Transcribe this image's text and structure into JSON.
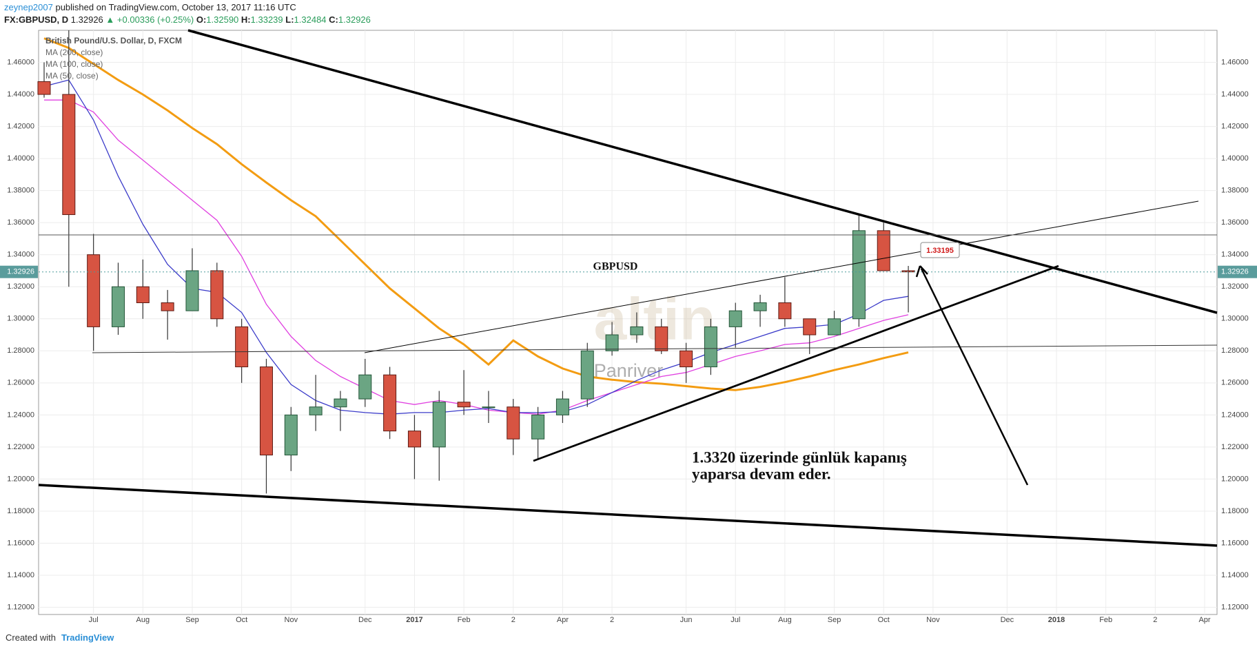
{
  "header": {
    "author": "zeynep2007",
    "published": "published on TradingView.com, October 13, 2017 11:16 UTC",
    "symbol": "FX:GBPUSD, D",
    "price": "1.32926",
    "change": "▲ +0.00336 (+0.25%)",
    "open_label": "O:",
    "open": "1.32590",
    "high_label": "H:",
    "high": "1.33239",
    "low_label": "L:",
    "low": "1.32484",
    "close_label": "C:",
    "close": "1.32926"
  },
  "chart_data": {
    "type": "candlestick",
    "instrument": "British Pound/U.S. Dollar, D, FXCM",
    "categories": [
      null,
      null,
      "Jul",
      null,
      "Aug",
      null,
      "Sep",
      null,
      "Oct",
      null,
      "Nov",
      null,
      null,
      "Dec",
      null,
      "2017",
      null,
      "Feb",
      null,
      "2",
      null,
      "Apr",
      null,
      "2",
      null,
      null,
      "Jun",
      null,
      "Jul",
      null,
      "Aug",
      null,
      "Sep",
      null,
      "Oct",
      null,
      "Nov",
      null,
      null,
      "Dec",
      null,
      "2018",
      null,
      "Feb",
      null,
      "2",
      null,
      "Apr"
    ],
    "up_color": "#6ba583",
    "down_color": "#d75442",
    "open": [
      1.448,
      1.44,
      1.34,
      1.295,
      1.32,
      1.31,
      1.305,
      1.33,
      1.295,
      1.27,
      1.215,
      1.24,
      1.245,
      1.25,
      1.265,
      1.23,
      1.22,
      1.248,
      1.245,
      1.245,
      1.225,
      1.24,
      1.25,
      1.28,
      1.29,
      1.295,
      1.28,
      1.27,
      1.295,
      1.305,
      1.31,
      1.3,
      1.29,
      1.3,
      1.355,
      1.33,
      null,
      null,
      null,
      null,
      null,
      null,
      null,
      null,
      null,
      null,
      null,
      null
    ],
    "high": [
      1.46,
      1.48,
      1.353,
      1.335,
      1.337,
      1.318,
      1.344,
      1.335,
      1.3,
      1.275,
      1.245,
      1.265,
      1.255,
      1.275,
      1.27,
      1.24,
      1.255,
      1.268,
      1.255,
      1.25,
      1.245,
      1.255,
      1.285,
      1.298,
      1.304,
      1.3,
      1.285,
      1.3,
      1.31,
      1.315,
      1.326,
      1.3,
      1.305,
      1.365,
      1.36,
      1.333,
      null,
      null,
      null,
      null,
      null,
      null,
      null,
      null,
      null,
      null,
      null,
      null
    ],
    "low": [
      1.438,
      1.32,
      1.28,
      1.29,
      1.3,
      1.287,
      1.305,
      1.295,
      1.26,
      1.191,
      1.205,
      1.23,
      1.23,
      1.245,
      1.225,
      1.2,
      1.199,
      1.24,
      1.235,
      1.215,
      1.212,
      1.235,
      1.245,
      1.277,
      1.285,
      1.278,
      1.26,
      1.265,
      1.282,
      1.295,
      1.295,
      1.278,
      1.29,
      1.295,
      1.33,
      1.304,
      null,
      null,
      null,
      null,
      null,
      null,
      null,
      null,
      null,
      null,
      null,
      null
    ],
    "close": [
      1.44,
      1.365,
      1.295,
      1.32,
      1.31,
      1.305,
      1.33,
      1.3,
      1.27,
      1.215,
      1.24,
      1.245,
      1.25,
      1.265,
      1.23,
      1.22,
      1.248,
      1.245,
      1.245,
      1.225,
      1.24,
      1.25,
      1.28,
      1.29,
      1.295,
      1.28,
      1.27,
      1.295,
      1.305,
      1.31,
      1.3,
      1.29,
      1.3,
      1.355,
      1.33,
      1.32926,
      null,
      null,
      null,
      null,
      null,
      null,
      null,
      null,
      null,
      null,
      null,
      null
    ],
    "series": [
      {
        "name": "MA (200, close)",
        "color": "#f39c12",
        "width": 3,
        "values": [
          1.475,
          1.469,
          1.459,
          1.449,
          1.44,
          1.43,
          1.419,
          1.409,
          1.3965,
          1.385,
          1.374,
          1.364,
          1.349,
          1.334,
          1.319,
          1.3065,
          1.294,
          1.284,
          1.2715,
          1.2865,
          1.2765,
          1.269,
          1.264,
          1.262,
          1.2605,
          1.2595,
          1.258,
          1.2565,
          1.2555,
          1.2575,
          1.2605,
          1.264,
          1.268,
          1.2715,
          1.2755,
          1.279,
          null,
          null,
          null,
          null,
          null,
          null,
          null,
          null,
          null,
          null,
          null,
          null
        ]
      },
      {
        "name": "MA (100, close)",
        "color": "#e040e0",
        "width": 1.3,
        "values": [
          1.4365,
          1.4365,
          1.429,
          1.4115,
          1.399,
          1.3865,
          1.374,
          1.3615,
          1.339,
          1.309,
          1.289,
          1.274,
          1.264,
          1.2565,
          1.249,
          1.2465,
          1.249,
          1.2465,
          1.243,
          1.2415,
          1.2405,
          1.243,
          1.249,
          1.254,
          1.259,
          1.264,
          1.2665,
          1.2715,
          1.2765,
          1.28,
          1.284,
          1.285,
          1.289,
          1.294,
          1.299,
          1.3025,
          null,
          null,
          null,
          null,
          null,
          null,
          null,
          null,
          null,
          null,
          null,
          null
        ]
      },
      {
        "name": "MA (50, close)",
        "color": "#3b3bc9",
        "width": 1.3,
        "values": [
          1.445,
          1.449,
          1.424,
          1.389,
          1.359,
          1.334,
          1.319,
          1.3165,
          1.304,
          1.279,
          1.259,
          1.249,
          1.243,
          1.2415,
          1.2405,
          1.2415,
          1.2415,
          1.243,
          1.244,
          1.2415,
          1.2415,
          1.242,
          1.2465,
          1.254,
          1.2615,
          1.268,
          1.273,
          1.279,
          1.284,
          1.289,
          1.294,
          1.295,
          1.2965,
          1.303,
          1.3115,
          1.314,
          null,
          null,
          null,
          null,
          null,
          null,
          null,
          null,
          null,
          null,
          null,
          null
        ]
      }
    ],
    "last_price": 1.32926,
    "ylim": [
      1.1155,
      1.48
    ],
    "yticks": [
      {
        "value": 1.12,
        "label": "1.12000"
      },
      {
        "value": 1.14,
        "label": "1.14000"
      },
      {
        "value": 1.16,
        "label": "1.16000"
      },
      {
        "value": 1.18,
        "label": "1.18000"
      },
      {
        "value": 1.2,
        "label": "1.20000"
      },
      {
        "value": 1.22,
        "label": "1.22000"
      },
      {
        "value": 1.24,
        "label": "1.24000"
      },
      {
        "value": 1.26,
        "label": "1.26000"
      },
      {
        "value": 1.28,
        "label": "1.28000"
      },
      {
        "value": 1.3,
        "label": "1.30000"
      },
      {
        "value": 1.32,
        "label": "1.32000"
      },
      {
        "value": 1.34,
        "label": "1.34000"
      },
      {
        "value": 1.36,
        "label": "1.36000"
      },
      {
        "value": 1.38,
        "label": "1.38000"
      },
      {
        "value": 1.4,
        "label": "1.40000"
      },
      {
        "value": 1.42,
        "label": "1.42000"
      },
      {
        "value": 1.44,
        "label": "1.44000"
      },
      {
        "value": 1.46,
        "label": "1.46000"
      }
    ],
    "grid": true,
    "annotations": {
      "symbol_note": "GBPUSD",
      "price_callout": "1.33195",
      "comment_line1": "1.3320 üzerinde günlük kapanış",
      "comment_line2": "yaparsa devam eder."
    },
    "watermark": {
      "logo": "altin",
      "sub": "Panriver"
    }
  },
  "footer": {
    "created_with": "Created with",
    "brand": "TradingView"
  }
}
